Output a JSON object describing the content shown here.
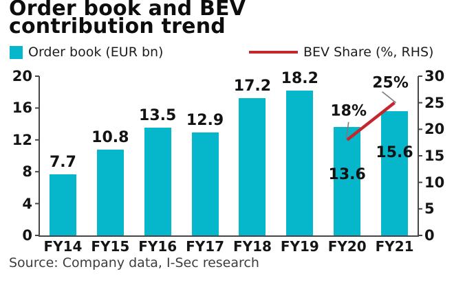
{
  "title": {
    "line1": "Order book and BEV",
    "line2": "contribution trend"
  },
  "source": "Source: Company data, I-Sec research",
  "colors": {
    "bar": "#06b6ca",
    "line": "#c4262e",
    "axis": "#454545",
    "leader": "#7a7a7a"
  },
  "chart_data": {
    "type": "bar",
    "subtype": "bar-with-line-overlay",
    "title": "Order book and BEV contribution trend",
    "categories": [
      "FY14",
      "FY15",
      "FY16",
      "FY17",
      "FY18",
      "FY19",
      "FY20",
      "FY21"
    ],
    "series": [
      {
        "name": "Order book (EUR bn)",
        "type": "bar",
        "axis": "left",
        "color": "#06b6ca",
        "values": [
          7.7,
          10.8,
          13.5,
          12.9,
          17.2,
          18.2,
          13.6,
          15.6
        ],
        "value_labels": [
          "7.7",
          "10.8",
          "13.5",
          "12.9",
          "17.2",
          "18.2",
          "13.6",
          "15.6"
        ]
      },
      {
        "name": "BEV Share (%, RHS)",
        "type": "line",
        "axis": "right",
        "color": "#c4262e",
        "values": [
          null,
          null,
          null,
          null,
          null,
          null,
          18,
          25
        ],
        "point_labels": [
          null,
          null,
          null,
          null,
          null,
          null,
          "18%",
          "25%"
        ]
      }
    ],
    "left_axis": {
      "min": 0,
      "max": 20,
      "ticks": [
        0,
        4,
        8,
        12,
        16,
        20
      ]
    },
    "right_axis": {
      "min": 0,
      "max": 30,
      "ticks": [
        0,
        5,
        10,
        15,
        20,
        25,
        30
      ]
    },
    "grid": false,
    "legend_position": "top"
  }
}
